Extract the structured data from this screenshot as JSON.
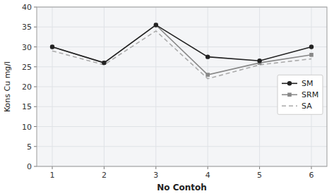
{
  "chart_data": {
    "type": "line",
    "x": [
      1,
      2,
      3,
      4,
      5,
      6
    ],
    "series": [
      {
        "name": "SM",
        "color": "#222222",
        "marker": "circle",
        "line_style": "solid",
        "values": [
          30,
          26,
          35.5,
          27.5,
          26.5,
          30
        ]
      },
      {
        "name": "SRM",
        "color": "#888888",
        "marker": "square",
        "line_style": "solid",
        "values": [
          30,
          26,
          35.5,
          23,
          26,
          28
        ]
      },
      {
        "name": "SA",
        "color": "#aaaaaa",
        "marker": "none",
        "line_style": "dashed",
        "values": [
          29,
          25.5,
          34,
          22,
          25.5,
          27
        ]
      }
    ],
    "xlabel": "No Contoh",
    "ylabel": "Kons Cu mg/l",
    "xlim": [
      0.7,
      6.3
    ],
    "xticks": [
      1,
      2,
      3,
      4,
      5,
      6
    ],
    "ylim": [
      0,
      40
    ],
    "yticks": [
      0,
      5,
      10,
      15,
      20,
      25,
      30,
      35,
      40
    ],
    "grid": true,
    "legend": "right"
  }
}
